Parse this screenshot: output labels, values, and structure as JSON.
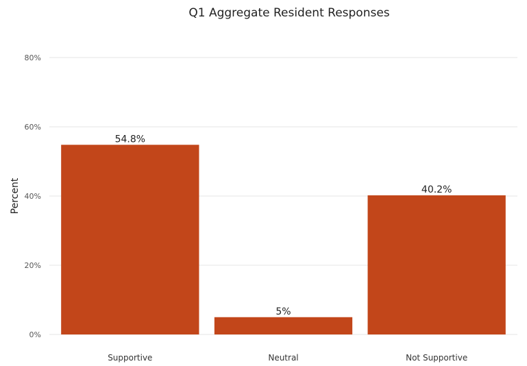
{
  "chart_data": {
    "type": "bar",
    "title": "Q1 Aggregate Resident Responses",
    "xlabel": "",
    "ylabel": "Percent",
    "categories": [
      "Supportive",
      "Neutral",
      "Not Supportive"
    ],
    "values": [
      54.8,
      5,
      40.2
    ],
    "data_labels": [
      "54.8%",
      "5%",
      "40.2%"
    ],
    "ylim": [
      0,
      80
    ],
    "yticks": [
      0,
      20,
      40,
      60,
      80
    ],
    "ytick_labels": [
      "0%",
      "20%",
      "40%",
      "60%",
      "80%"
    ],
    "grid": true,
    "legend": "none",
    "bar_color": "#c2461a"
  }
}
